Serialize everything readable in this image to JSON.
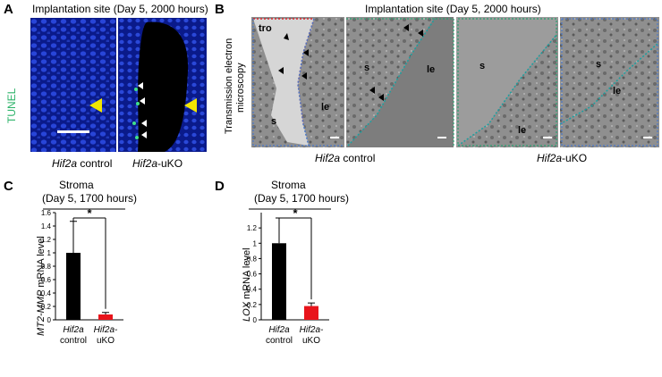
{
  "panelA": {
    "letter": "A",
    "title": "Implantation site (Day 5, 2000 hours)",
    "stain": "TUNEL",
    "label_left_italic": "Hif2a",
    "label_left_rest": " control",
    "label_right_italic": "Hif2a",
    "label_right_rest": "-uKO",
    "colors": {
      "bg": "#0a1a8a",
      "nuclei": "#2845d8",
      "tunel": "#3fe08a",
      "arrow": "#f2e600"
    }
  },
  "panelB": {
    "letter": "B",
    "title": "Implantation site (Day 5, 2000 hours)",
    "side_label_1": "Transmission electron",
    "side_label_2": "microscopy",
    "tile_labels": [
      {
        "tro": "tro",
        "s": "s",
        "le": "le"
      },
      {
        "s": "s",
        "le": "le"
      },
      {
        "s": "s",
        "le": "le"
      },
      {
        "s": "s",
        "le": "le"
      }
    ],
    "label_left_italic": "Hif2a",
    "label_left_rest": " control",
    "label_right_italic": "Hif2a",
    "label_right_rest": "-uKO",
    "colors": {
      "red_outline": "#d8232a",
      "blue_outline": "#4a78c8",
      "green_outline": "#2aa070",
      "teal_outline": "#1aa0a0"
    }
  },
  "panelC": {
    "letter": "C",
    "title1": "Stroma",
    "title2": "(Day 5, 1700 hours)",
    "significance": "*",
    "ylabel_italic": "MT2-MMP",
    "ylabel_rest": " mRNA level",
    "xlabels": [
      {
        "italic": "Hif2a",
        "rest": "control"
      },
      {
        "italic": "Hif2a-",
        "rest": "uKO"
      }
    ]
  },
  "panelD": {
    "letter": "D",
    "title1": "Stroma",
    "title2": "(Day 5, 1700 hours)",
    "significance": "*",
    "ylabel_italic": "LOX",
    "ylabel_rest": " mRNA level",
    "xlabels": [
      {
        "italic": "Hif2a",
        "rest": "control"
      },
      {
        "italic": "Hif2a-",
        "rest": "uKO"
      }
    ]
  },
  "chart_data": [
    {
      "type": "bar",
      "title": "Stroma (Day 5, 1700 hours)",
      "ylabel": "MT2-MMP mRNA level",
      "categories": [
        "Hif2a control",
        "Hif2a-uKO"
      ],
      "values": [
        1.0,
        0.08
      ],
      "error": [
        0.47,
        0.03
      ],
      "colors": [
        "#000000",
        "#e8141b"
      ],
      "ylim": [
        0,
        1.6
      ],
      "yticks": [
        0,
        0.2,
        0.4,
        0.6,
        0.8,
        1,
        1.2,
        1.4,
        1.6
      ],
      "significance": "*"
    },
    {
      "type": "bar",
      "title": "Stroma (Day 5, 1700 hours)",
      "ylabel": "LOX mRNA level",
      "categories": [
        "Hif2a control",
        "Hif2a-uKO"
      ],
      "values": [
        1.0,
        0.18
      ],
      "error": [
        0.33,
        0.04
      ],
      "colors": [
        "#000000",
        "#e8141b"
      ],
      "ylim": [
        0,
        1.4
      ],
      "yticks": [
        0,
        0.2,
        0.4,
        0.6,
        0.8,
        1,
        1.2
      ],
      "significance": "*"
    }
  ]
}
